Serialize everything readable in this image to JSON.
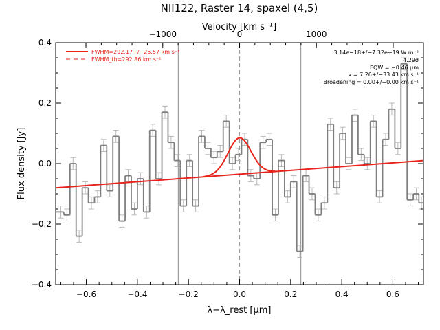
{
  "chart_data": {
    "type": "line",
    "title": "NII122, Raster 14, spaxel (4,5)",
    "top_axis": {
      "label": "Velocity [km s⁻¹]",
      "ticks": [
        {
          "value": -1000,
          "label": "−1000"
        },
        {
          "value": 0,
          "label": "0"
        },
        {
          "value": 1000,
          "label": "1000"
        }
      ]
    },
    "xlabel": "λ−λ_rest [μm]",
    "ylabel": "Flux density [Jy]",
    "xlim": [
      -0.72,
      0.72
    ],
    "ylim": [
      -0.4,
      0.4
    ],
    "xticks": [
      {
        "value": -0.6,
        "label": "−0.6"
      },
      {
        "value": -0.4,
        "label": "−0.4"
      },
      {
        "value": -0.2,
        "label": "−0.2"
      },
      {
        "value": 0.0,
        "label": "0.0"
      },
      {
        "value": 0.2,
        "label": "0.2"
      },
      {
        "value": 0.4,
        "label": "0.4"
      },
      {
        "value": 0.6,
        "label": "0.6"
      }
    ],
    "yticks": [
      {
        "value": -0.4,
        "label": "−0.4"
      },
      {
        "value": -0.2,
        "label": "−0.2"
      },
      {
        "value": 0.0,
        "label": "0.0"
      },
      {
        "value": 0.2,
        "label": "0.2"
      },
      {
        "value": 0.4,
        "label": "0.4"
      }
    ],
    "vertical_lines": [
      -0.24,
      0.24
    ],
    "zero_line": 0.0,
    "legend": {
      "placement": "top-left",
      "entries": [
        {
          "label": "FWHM=292.17+/−25.57 km s⁻¹",
          "style": "solid"
        },
        {
          "label": "FWHM_th=292.86 km s⁻¹",
          "style": "dashed"
        }
      ]
    },
    "annotations": [
      "3.14e−18+/−7.32e−19 W m⁻²",
      "4.29σ",
      "EQW = −0.46 μm",
      "v = 7.26+/−33.43 km s⁻¹",
      "Broadening = 0.00+/−0.00 km s⁻¹"
    ],
    "series": [
      {
        "kind": "histogram",
        "x": [
          -0.7,
          -0.676,
          -0.652,
          -0.628,
          -0.604,
          -0.58,
          -0.556,
          -0.532,
          -0.508,
          -0.484,
          -0.46,
          -0.436,
          -0.412,
          -0.388,
          -0.364,
          -0.34,
          -0.316,
          -0.292,
          -0.268,
          -0.244,
          -0.22,
          -0.196,
          -0.172,
          -0.148,
          -0.124,
          -0.1,
          -0.076,
          -0.052,
          -0.028,
          -0.004,
          0.02,
          0.044,
          0.068,
          0.092,
          0.116,
          0.14,
          0.164,
          0.188,
          0.212,
          0.236,
          0.26,
          0.284,
          0.308,
          0.332,
          0.356,
          0.38,
          0.404,
          0.428,
          0.452,
          0.476,
          0.5,
          0.524,
          0.548,
          0.572,
          0.596,
          0.62,
          0.644,
          0.668,
          0.692,
          0.712
        ],
        "values": [
          -0.16,
          -0.17,
          0.0,
          -0.24,
          -0.08,
          -0.13,
          -0.11,
          0.06,
          -0.09,
          0.09,
          -0.19,
          -0.04,
          -0.15,
          -0.05,
          -0.16,
          0.11,
          -0.05,
          0.17,
          0.07,
          0.01,
          -0.14,
          0.01,
          -0.14,
          0.09,
          0.05,
          0.02,
          0.04,
          0.14,
          0.0,
          0.03,
          0.08,
          -0.04,
          -0.05,
          0.07,
          0.08,
          -0.17,
          0.01,
          -0.11,
          -0.06,
          -0.29,
          -0.04,
          -0.1,
          -0.17,
          -0.13,
          0.13,
          -0.08,
          0.1,
          0.0,
          0.16,
          0.03,
          0.0,
          0.14,
          -0.11,
          0.08,
          0.18,
          0.05,
          0.33,
          -0.12,
          -0.1,
          -0.13
        ],
        "errors": [
          0.02,
          0.02,
          0.02,
          0.02,
          0.02,
          0.02,
          0.02,
          0.02,
          0.02,
          0.02,
          0.02,
          0.02,
          0.02,
          0.02,
          0.02,
          0.02,
          0.02,
          0.02,
          0.02,
          0.02,
          0.02,
          0.02,
          0.02,
          0.02,
          0.02,
          0.02,
          0.02,
          0.02,
          0.02,
          0.02,
          0.02,
          0.02,
          0.02,
          0.02,
          0.02,
          0.02,
          0.02,
          0.02,
          0.02,
          0.02,
          0.02,
          0.02,
          0.02,
          0.02,
          0.02,
          0.02,
          0.02,
          0.02,
          0.02,
          0.02,
          0.02,
          0.02,
          0.02,
          0.02,
          0.02,
          0.02,
          0.02,
          0.02,
          0.02,
          0.02
        ],
        "color": "#7f7f7f"
      },
      {
        "kind": "continuum",
        "x": [
          -0.72,
          0.72
        ],
        "values": [
          -0.08,
          0.01
        ],
        "color": "#e8231a"
      },
      {
        "kind": "gaussian-fit",
        "center": 0.0,
        "sigma": 0.045,
        "amplitude": 0.12,
        "x_range": [
          -0.14,
          0.14
        ],
        "color": "#e8231a"
      }
    ]
  }
}
